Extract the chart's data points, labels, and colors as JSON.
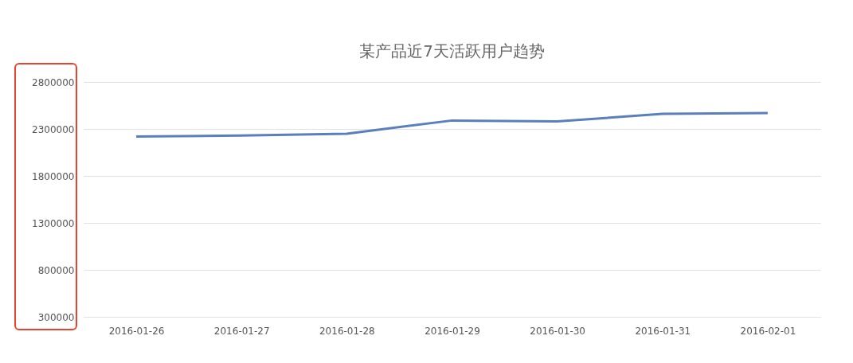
{
  "chart_data": {
    "type": "line",
    "title": "某产品近7天活跃用户趋势",
    "categories": [
      "2016-01-26",
      "2016-01-27",
      "2016-01-28",
      "2016-01-29",
      "2016-01-30",
      "2016-01-31",
      "2016-02-01"
    ],
    "series": [
      {
        "color": "#5b7fbd",
        "values": [
          2220000,
          2230000,
          2250000,
          2390000,
          2380000,
          2460000,
          2470000
        ]
      }
    ],
    "ylim": [
      300000,
      2800000
    ],
    "yticks": [
      300000,
      800000,
      1300000,
      1800000,
      2300000,
      2800000
    ],
    "grid": "y",
    "marker": "none",
    "line_style": "solid"
  }
}
